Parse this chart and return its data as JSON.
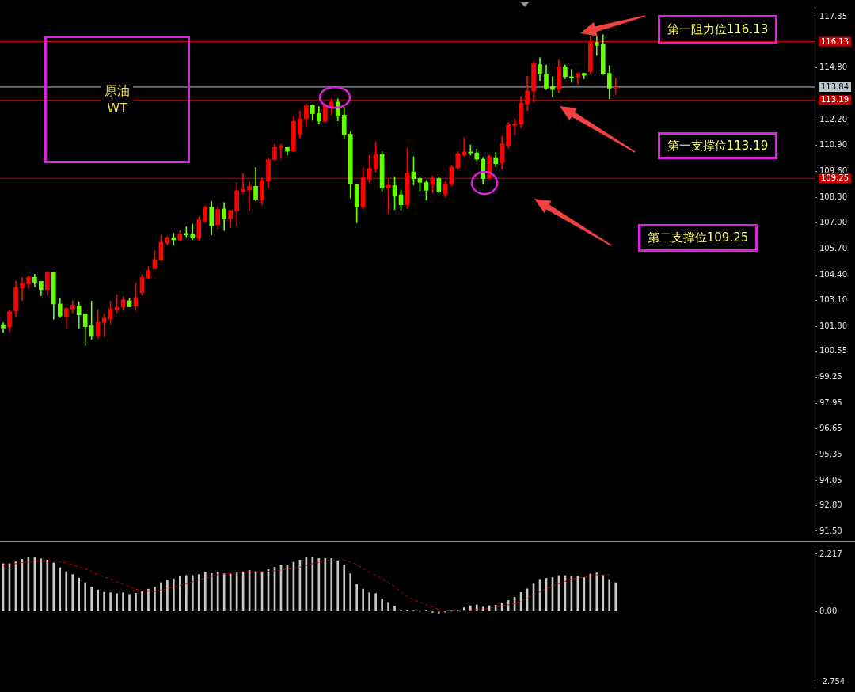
{
  "chart_data": [
    {
      "type": "candlestick",
      "title": "原油 WT",
      "categories": [
        null,
        null,
        null,
        null,
        null,
        null,
        null,
        null,
        null,
        null,
        null,
        null,
        null,
        null,
        null,
        null,
        null,
        null,
        null,
        null,
        null,
        null,
        null,
        null,
        null,
        null,
        null,
        null,
        null,
        null,
        null,
        null,
        null,
        null,
        null,
        null,
        null,
        null,
        null,
        null,
        null,
        null,
        null,
        null,
        null,
        null,
        null,
        null,
        null,
        null,
        null,
        null,
        null,
        null,
        null,
        null,
        null,
        null,
        null,
        null,
        null,
        null,
        null,
        null,
        null,
        null,
        null,
        null,
        null,
        null,
        null,
        null,
        null,
        null,
        null,
        null,
        null,
        null,
        null,
        null,
        null,
        null,
        null,
        null,
        null,
        null,
        null,
        null,
        null,
        null,
        null,
        null,
        null,
        null,
        null,
        null,
        null,
        null,
        null,
        null,
        null,
        null,
        null,
        null,
        null,
        null,
        null,
        null,
        null,
        null,
        null,
        null,
        null,
        null,
        null,
        null,
        null,
        null,
        null,
        null,
        null,
        null,
        null,
        null,
        null,
        null,
        null,
        null,
        null
      ],
      "ohlc": [
        [
          101.89,
          101.99,
          101.5,
          101.72
        ],
        [
          101.76,
          102.61,
          101.54,
          102.55
        ],
        [
          102.57,
          104.07,
          102.28,
          103.76
        ],
        [
          103.73,
          104.27,
          103.11,
          103.96
        ],
        [
          103.94,
          104.34,
          103.71,
          104.27
        ],
        [
          104.27,
          104.43,
          103.79,
          104.02
        ],
        [
          104.07,
          104.07,
          103.34,
          103.65
        ],
        [
          103.65,
          104.57,
          103.36,
          104.51
        ],
        [
          104.51,
          104.55,
          102.16,
          102.93
        ],
        [
          102.93,
          103.22,
          102.24,
          102.32
        ],
        [
          102.29,
          102.74,
          101.67,
          102.71
        ],
        [
          102.68,
          103.1,
          102.48,
          102.87
        ],
        [
          102.83,
          103.04,
          101.69,
          102.38
        ],
        [
          102.44,
          102.44,
          100.85,
          101.79
        ],
        [
          101.85,
          103.07,
          101.15,
          101.3
        ],
        [
          101.33,
          102.64,
          101.2,
          102.01
        ],
        [
          101.99,
          102.44,
          101.28,
          102.21
        ],
        [
          102.18,
          103.07,
          101.93,
          102.68
        ],
        [
          102.64,
          103.42,
          102.48,
          102.76
        ],
        [
          102.77,
          103.3,
          102.6,
          103.13
        ],
        [
          103.09,
          103.2,
          102.79,
          102.79
        ],
        [
          102.83,
          103.97,
          102.6,
          103.25
        ],
        [
          103.5,
          104.4,
          103.37,
          104.27
        ],
        [
          104.24,
          104.81,
          104.2,
          104.62
        ],
        [
          104.7,
          105.61,
          104.7,
          105.17
        ],
        [
          105.13,
          106.39,
          105.13,
          106.03
        ],
        [
          105.99,
          106.32,
          105.9,
          106.27
        ],
        [
          106.27,
          106.49,
          105.88,
          106.16
        ],
        [
          106.15,
          106.62,
          106.11,
          106.46
        ],
        [
          106.48,
          106.81,
          106.31,
          106.4
        ],
        [
          106.45,
          106.95,
          106.16,
          106.24
        ],
        [
          106.23,
          107.31,
          106.14,
          107.16
        ],
        [
          107.09,
          107.85,
          107.02,
          107.79
        ],
        [
          107.8,
          108.1,
          106.4,
          106.87
        ],
        [
          106.91,
          107.83,
          106.72,
          107.68
        ],
        [
          107.71,
          108.03,
          106.63,
          107.22
        ],
        [
          107.22,
          107.64,
          106.77,
          107.64
        ],
        [
          107.61,
          109.01,
          106.86,
          108.62
        ],
        [
          108.59,
          109.49,
          108.49,
          108.7
        ],
        [
          108.66,
          109.1,
          107.64,
          108.85
        ],
        [
          108.85,
          109.79,
          108.12,
          108.19
        ],
        [
          108.16,
          109.27,
          107.92,
          109.13
        ],
        [
          109.1,
          110.29,
          108.78,
          110.19
        ],
        [
          110.19,
          110.97,
          110.16,
          110.8
        ],
        [
          110.77,
          110.97,
          110.25,
          110.85
        ],
        [
          110.8,
          110.8,
          110.42,
          110.61
        ],
        [
          110.61,
          112.37,
          110.58,
          112.12
        ],
        [
          111.47,
          112.62,
          111.27,
          112.23
        ],
        [
          112.25,
          112.99,
          111.84,
          112.9
        ],
        [
          112.93,
          112.96,
          112.17,
          112.5
        ],
        [
          112.51,
          112.86,
          111.98,
          112.14
        ],
        [
          112.12,
          113.0,
          112.09,
          112.93
        ],
        [
          112.8,
          113.28,
          112.43,
          113.09
        ],
        [
          113.09,
          113.25,
          112.14,
          112.38
        ],
        [
          112.43,
          112.82,
          111.23,
          111.45
        ],
        [
          111.47,
          111.59,
          108.25,
          108.98
        ],
        [
          108.94,
          108.94,
          107.02,
          107.81
        ],
        [
          107.81,
          109.79,
          107.73,
          109.27
        ],
        [
          109.21,
          110.42,
          109.04,
          109.75
        ],
        [
          109.73,
          111.07,
          109.56,
          110.45
        ],
        [
          110.45,
          110.58,
          108.59,
          108.75
        ],
        [
          108.75,
          109.21,
          107.48,
          108.88
        ],
        [
          108.88,
          109.31,
          107.68,
          108.35
        ],
        [
          108.42,
          108.66,
          107.64,
          107.92
        ],
        [
          107.92,
          110.77,
          107.73,
          109.51
        ],
        [
          109.57,
          110.34,
          108.92,
          109.23
        ],
        [
          109.24,
          109.33,
          108.62,
          109.05
        ],
        [
          109.04,
          109.14,
          108.16,
          108.65
        ],
        [
          108.94,
          109.36,
          108.51,
          109.24
        ],
        [
          109.24,
          109.33,
          108.51,
          108.58
        ],
        [
          108.46,
          109.11,
          108.32,
          108.97
        ],
        [
          108.97,
          109.9,
          108.88,
          109.82
        ],
        [
          109.79,
          110.6,
          109.69,
          110.5
        ],
        [
          110.42,
          111.29,
          110.38,
          110.58
        ],
        [
          110.58,
          110.93,
          110.42,
          110.53
        ],
        [
          110.53,
          110.73,
          110.12,
          110.21
        ],
        [
          110.21,
          110.31,
          108.97,
          109.23
        ],
        [
          109.27,
          110.42,
          109.21,
          110.34
        ],
        [
          110.29,
          110.55,
          109.82,
          109.99
        ],
        [
          110.03,
          111.36,
          109.7,
          110.99
        ],
        [
          110.9,
          112.05,
          110.77,
          111.95
        ],
        [
          111.92,
          112.27,
          111.43,
          111.99
        ],
        [
          111.98,
          113.38,
          111.78,
          113.03
        ],
        [
          112.99,
          114.39,
          112.66,
          113.64
        ],
        [
          113.64,
          115.12,
          113.08,
          115.01
        ],
        [
          114.97,
          115.32,
          114.17,
          114.49
        ],
        [
          114.49,
          114.95,
          113.71,
          113.78
        ],
        [
          113.86,
          114.36,
          113.34,
          113.71
        ],
        [
          113.71,
          115.21,
          113.55,
          114.86
        ],
        [
          114.86,
          114.95,
          114.26,
          114.36
        ],
        [
          114.36,
          114.73,
          114.08,
          114.29
        ],
        [
          114.34,
          114.53,
          113.97,
          114.53
        ],
        [
          114.53,
          114.53,
          114.26,
          114.43
        ],
        [
          114.62,
          116.39,
          114.47,
          116.09
        ],
        [
          116.09,
          116.39,
          115.43,
          115.93
        ],
        [
          115.99,
          116.48,
          114.47,
          114.49
        ],
        [
          114.53,
          114.93,
          113.25,
          113.78
        ],
        [
          113.79,
          114.3,
          113.47,
          113.84
        ],
        null,
        null,
        null,
        null,
        null,
        null,
        null,
        null,
        null,
        null,
        null,
        null,
        null,
        null,
        null,
        null,
        null,
        null,
        null,
        null,
        null,
        null,
        null,
        null,
        null,
        null,
        null,
        null,
        null,
        null,
        null
      ],
      "colors": [
        "#66ff00",
        "#ff0000",
        "#ff0000",
        "#ff0000",
        "#ff0000",
        "#66ff00",
        "#66ff00",
        "#ff0000",
        "#66ff00",
        "#66ff00",
        "#ff0000",
        "#ff0000",
        "#66ff00",
        "#66ff00",
        "#66ff00",
        "#ff0000",
        "#ff0000",
        "#ff0000",
        "#ff0000",
        "#ff0000",
        "#66ff00",
        "#ff0000",
        "#ff0000",
        "#ff0000",
        "#ff0000",
        "#ff0000",
        "#ff0000",
        "#66ff00",
        "#ff0000",
        "#66ff00",
        "#66ff00",
        "#ff0000",
        "#ff0000",
        "#66ff00",
        "#ff0000",
        "#66ff00",
        "#ff0000",
        "#ff0000",
        "#ff0000",
        "#ff0000",
        "#66ff00",
        "#ff0000",
        "#ff0000",
        "#ff0000",
        "#ff0000",
        "#66ff00",
        "#ff0000",
        "#ff0000",
        "#ff0000",
        "#66ff00",
        "#66ff00",
        "#ff0000",
        "#ff0000",
        "#66ff00",
        "#66ff00",
        "#66ff00",
        "#66ff00",
        "#ff0000",
        "#ff0000",
        "#ff0000",
        "#66ff00",
        "#ff0000",
        "#66ff00",
        "#66ff00",
        "#ff0000",
        "#66ff00",
        "#66ff00",
        "#66ff00",
        "#ff0000",
        "#66ff00",
        "#ff0000",
        "#ff0000",
        "#ff0000",
        "#ff0000",
        "#66ff00",
        "#66ff00",
        "#66ff00",
        "#ff0000",
        "#66ff00",
        "#ff0000",
        "#ff0000",
        "#ff0000",
        "#ff0000",
        "#ff0000",
        "#ff0000",
        "#66ff00",
        "#66ff00",
        "#66ff00",
        "#ff0000",
        "#66ff00",
        "#66ff00",
        "#ff0000",
        "#66ff00",
        "#ff0000",
        "#66ff00",
        "#66ff00",
        "#66ff00",
        "#ff0000",
        null,
        null,
        null,
        null,
        null,
        null,
        null,
        null,
        null,
        null,
        null,
        null,
        null,
        null,
        null,
        null,
        null,
        null,
        null,
        null,
        null,
        null,
        null,
        null,
        null,
        null,
        null,
        null,
        null,
        null,
        null
      ],
      "ylim": [
        91.38,
        117.86
      ],
      "yticks": [
        {
          "value": 117.35,
          "label": "117.35"
        },
        {
          "value": 114.8,
          "label": "114.80"
        },
        {
          "value": 112.2,
          "label": "112.20"
        },
        {
          "value": 110.9,
          "label": "110.90"
        },
        {
          "value": 109.6,
          "label": "109.60"
        },
        {
          "value": 108.3,
          "label": "108.30"
        },
        {
          "value": 107,
          "label": "107.00"
        },
        {
          "value": 105.7,
          "label": "105.70"
        },
        {
          "value": 104.4,
          "label": "104.40"
        },
        {
          "value": 103.1,
          "label": "103.10"
        },
        {
          "value": 101.8,
          "label": "101.80"
        },
        {
          "value": 100.55,
          "label": "100.55"
        },
        {
          "value": 99.25,
          "label": "99.25"
        },
        {
          "value": 97.95,
          "label": "97.95"
        },
        {
          "value": 96.65,
          "label": "96.65"
        },
        {
          "value": 95.35,
          "label": "95.35"
        },
        {
          "value": 94.05,
          "label": "94.05"
        },
        {
          "value": 92.8,
          "label": "92.80"
        },
        {
          "value": 91.5,
          "label": "91.50"
        }
      ],
      "tick_labels": "y",
      "ref_lines": [
        {
          "axis": "y",
          "value": 116.13,
          "label": "116.13",
          "color": "#c80000"
        },
        {
          "axis": "y",
          "value": 113.84,
          "label": "113.84",
          "color": "#b8c4cc"
        },
        {
          "axis": "y",
          "value": 113.19,
          "label": "113.19",
          "color": "#c80000"
        },
        {
          "axis": "y",
          "value": 109.25,
          "label": "109.25",
          "color": "#c80000"
        }
      ],
      "annotations": [
        "第一阻力位116.13",
        "第一支撑位113.19",
        "第二支撑位109.25"
      ]
    },
    {
      "type": "bar",
      "categories": [
        null,
        null,
        null,
        null,
        null,
        null,
        null,
        null,
        null,
        null,
        null,
        null,
        null,
        null,
        null,
        null,
        null,
        null,
        null,
        null,
        null,
        null,
        null,
        null,
        null,
        null,
        null,
        null,
        null,
        null,
        null,
        null,
        null,
        null,
        null,
        null,
        null,
        null,
        null,
        null,
        null,
        null,
        null,
        null,
        null,
        null,
        null,
        null,
        null,
        null,
        null,
        null,
        null,
        null,
        null,
        null,
        null,
        null,
        null,
        null,
        null,
        null,
        null,
        null,
        null,
        null,
        null,
        null,
        null,
        null,
        null,
        null,
        null,
        null,
        null,
        null,
        null,
        null,
        null,
        null,
        null,
        null,
        null,
        null,
        null,
        null,
        null,
        null,
        null,
        null,
        null,
        null,
        null,
        null,
        null,
        null,
        null,
        null,
        null,
        null,
        null,
        null,
        null,
        null,
        null,
        null,
        null,
        null,
        null,
        null,
        null,
        null,
        null,
        null,
        null,
        null,
        null,
        null,
        null,
        null,
        null,
        null,
        null,
        null,
        null,
        null,
        null,
        null,
        null
      ],
      "series": [
        {
          "type": "bar",
          "color": "#c8c8c8",
          "values": [
            1.85,
            1.85,
            1.92,
            2.02,
            2.08,
            2.08,
            2.04,
            1.99,
            1.88,
            1.69,
            1.54,
            1.43,
            1.29,
            1.11,
            0.94,
            0.83,
            0.74,
            0.72,
            0.69,
            0.72,
            0.66,
            0.7,
            0.77,
            0.86,
            0.94,
            1.11,
            1.22,
            1.26,
            1.35,
            1.39,
            1.39,
            1.43,
            1.52,
            1.47,
            1.52,
            1.47,
            1.46,
            1.52,
            1.54,
            1.59,
            1.54,
            1.54,
            1.62,
            1.71,
            1.8,
            1.8,
            1.91,
            1.99,
            2.08,
            2.09,
            2.05,
            2.05,
            2.05,
            1.97,
            1.8,
            1.46,
            1.05,
            0.86,
            0.72,
            0.69,
            0.49,
            0.35,
            0.2,
            0.02,
            0.03,
            0.01,
            0.0,
            0.02,
            -0.04,
            -0.07,
            -0.03,
            0.01,
            0.06,
            0.14,
            0.22,
            0.25,
            0.17,
            0.22,
            0.24,
            0.31,
            0.42,
            0.55,
            0.73,
            0.87,
            1.09,
            1.24,
            1.28,
            1.31,
            1.39,
            1.39,
            1.35,
            1.36,
            1.31,
            1.45,
            1.49,
            1.4,
            1.24,
            1.11,
            null,
            null,
            null,
            null,
            null,
            null,
            null,
            null,
            null,
            null,
            null,
            null,
            null,
            null,
            null,
            null,
            null,
            null,
            null,
            null,
            null,
            null,
            null,
            null,
            null,
            null,
            null,
            null,
            null,
            null,
            null
          ]
        },
        {
          "type": "line",
          "color": "#c00000",
          "values": [
            1.76,
            1.8,
            1.85,
            1.89,
            1.92,
            1.95,
            1.97,
            1.96,
            1.94,
            1.92,
            1.88,
            1.8,
            1.73,
            1.65,
            1.53,
            1.42,
            1.34,
            1.25,
            1.13,
            1.06,
            0.96,
            0.86,
            0.8,
            0.78,
            0.77,
            0.83,
            0.88,
            0.94,
            1.0,
            1.08,
            1.15,
            1.22,
            1.29,
            1.35,
            1.42,
            1.45,
            1.47,
            1.49,
            1.52,
            1.53,
            1.53,
            1.53,
            1.55,
            1.57,
            1.6,
            1.64,
            1.67,
            1.71,
            1.79,
            1.85,
            1.9,
            1.97,
            1.99,
            1.99,
            1.99,
            1.92,
            1.82,
            1.65,
            1.52,
            1.4,
            1.25,
            1.12,
            0.95,
            0.75,
            0.57,
            0.45,
            0.35,
            0.26,
            0.17,
            0.07,
            0.03,
            0.01,
            0.01,
            0.02,
            0.04,
            0.07,
            0.1,
            0.13,
            0.17,
            0.21,
            0.26,
            0.31,
            0.39,
            0.52,
            0.64,
            0.76,
            0.87,
            0.98,
            1.08,
            1.16,
            1.25,
            1.3,
            1.33,
            1.38,
            1.42,
            1.42,
            1.42,
            null,
            null,
            null,
            null,
            null,
            null,
            null,
            null,
            null,
            null,
            null,
            null,
            null,
            null,
            null,
            null,
            null,
            null,
            null,
            null,
            null,
            null,
            null,
            null,
            null,
            null,
            null,
            null,
            null,
            null,
            null,
            null
          ]
        }
      ],
      "line_style": "dashed",
      "ylim": [
        -2.85,
        2.4
      ],
      "yticks": [
        2.217,
        {
          "value": 0,
          "label": "0.00"
        },
        -2.754
      ],
      "tick_labels": "y"
    }
  ]
}
